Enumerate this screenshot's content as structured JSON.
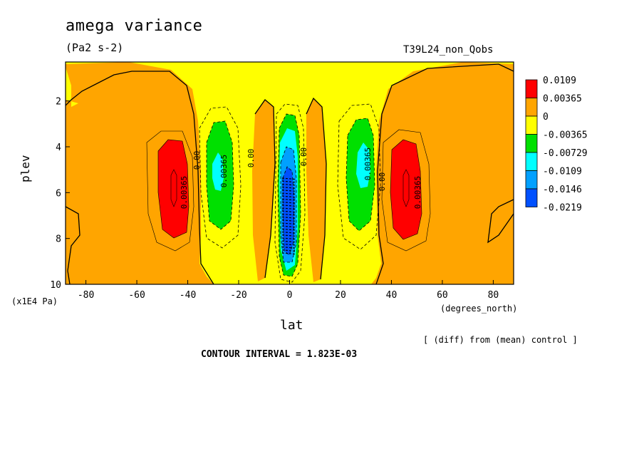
{
  "title": "amega variance",
  "units": "(Pa2 s-2)",
  "run_label": "T39L24_non_Qobs",
  "ylabel": "plev",
  "yunits": "(x1E4 Pa)",
  "xlabel": "lat",
  "xunits": "(degrees_north)",
  "note": "[ (diff) from (mean) control ]",
  "contour_interval": "CONTOUR INTERVAL = 1.823E-03",
  "colors": {
    "c0": "#ff0000",
    "c1": "#ffa500",
    "c2": "#ffff00",
    "c3": "#00e000",
    "c4": "#00ffff",
    "c5": "#00a0ff",
    "c6": "#0050ff"
  },
  "chart_data": {
    "type": "heatmap",
    "title": "amega variance",
    "xlabel": "lat",
    "ylabel": "plev",
    "xlim": [
      -88,
      88
    ],
    "ylim": [
      10,
      0.3
    ],
    "x_ticks": [
      "-80",
      "-60",
      "-40",
      "-20",
      "0",
      "20",
      "40",
      "60",
      "80"
    ],
    "y_ticks": [
      "2",
      "4",
      "6",
      "8",
      "10"
    ],
    "legend_levels": [
      "0.0109",
      "0.00365",
      "0",
      "-0.00365",
      "-0.00729",
      "-0.0109",
      "-0.0146",
      "-0.0219"
    ],
    "contour_labels": [
      "0.00365",
      "0.00",
      "0.00365",
      "0.00",
      "0.00",
      "0.00365",
      "0.00",
      "0.00365"
    ],
    "features": [
      {
        "lat": -45,
        "plev": 5.5,
        "value": 0.0109,
        "level": "0.0109"
      },
      {
        "lat": 45,
        "plev": 5.5,
        "value": 0.0109,
        "level": "0.0109"
      },
      {
        "lat": -28,
        "plev": 5,
        "value": -0.0109,
        "level": "-0.0109"
      },
      {
        "lat": 29,
        "plev": 4.8,
        "value": -0.0109,
        "level": "-0.0109"
      },
      {
        "lat": 0,
        "plev": 6.5,
        "value": -0.0219,
        "level": "-0.0219"
      }
    ]
  }
}
